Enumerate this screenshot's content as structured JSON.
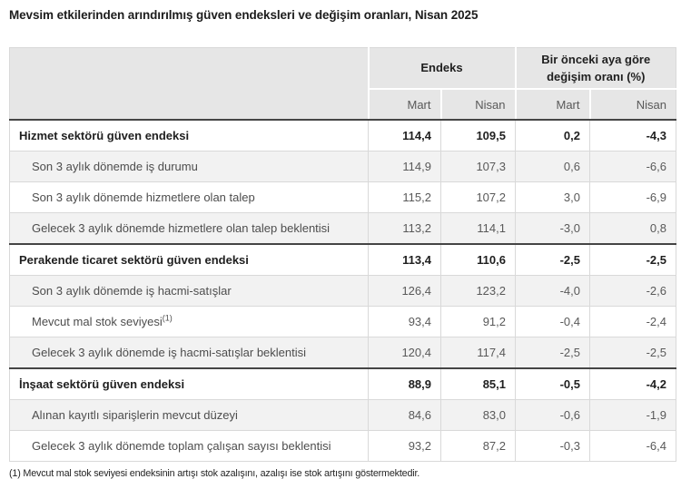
{
  "page": {
    "title": "Mevsim etkilerinden arındırılmış güven endeksleri ve değişim oranları, Nisan 2025",
    "footnote": "(1) Mevcut mal stok seviyesi endeksinin artışı stok azalışını, azalışı ise stok artışını göstermektedir."
  },
  "colors": {
    "header_bg": "#e6e6e6",
    "stripe_bg": "#f2f2f2",
    "light_border": "#d9d9d9",
    "dark_border": "#454545",
    "bold_text": "#1f1f1f",
    "normal_text": "#595959"
  },
  "table": {
    "group_headers": [
      {
        "label": "Endeks"
      },
      {
        "label": "Bir önceki aya göre değişim oranı (%)"
      }
    ],
    "sub_headers": [
      "Mart",
      "Nisan",
      "Mart",
      "Nisan"
    ],
    "rows": [
      {
        "label": "Hizmet sektörü güven endeksi",
        "bold": true,
        "values": [
          "114,4",
          "109,5",
          "0,2",
          "-4,3"
        ]
      },
      {
        "label": "Son 3 aylık dönemde iş durumu",
        "bold": false,
        "values": [
          "114,9",
          "107,3",
          "0,6",
          "-6,6"
        ]
      },
      {
        "label": "Son 3 aylık dönemde hizmetlere olan talep",
        "bold": false,
        "values": [
          "115,2",
          "107,2",
          "3,0",
          "-6,9"
        ]
      },
      {
        "label": "Gelecek 3 aylık dönemde hizmetlere olan talep beklentisi",
        "bold": false,
        "values": [
          "113,2",
          "114,1",
          "-3,0",
          "0,8"
        ]
      },
      {
        "label": "Perakende ticaret sektörü güven endeksi",
        "bold": true,
        "values": [
          "113,4",
          "110,6",
          "-2,5",
          "-2,5"
        ]
      },
      {
        "label": "Son 3 aylık dönemde iş hacmi-satışlar",
        "bold": false,
        "values": [
          "126,4",
          "123,2",
          "-4,0",
          "-2,6"
        ]
      },
      {
        "label": "Mevcut mal stok seviyesi",
        "label_sup": "(1)",
        "bold": false,
        "values": [
          "93,4",
          "91,2",
          "-0,4",
          "-2,4"
        ]
      },
      {
        "label": "Gelecek 3 aylık dönemde iş hacmi-satışlar beklentisi",
        "bold": false,
        "values": [
          "120,4",
          "117,4",
          "-2,5",
          "-2,5"
        ]
      },
      {
        "label": "İnşaat sektörü güven endeksi",
        "bold": true,
        "values": [
          "88,9",
          "85,1",
          "-0,5",
          "-4,2"
        ]
      },
      {
        "label": "Alınan kayıtlı siparişlerin mevcut düzeyi",
        "bold": false,
        "values": [
          "84,6",
          "83,0",
          "-0,6",
          "-1,9"
        ]
      },
      {
        "label": "Gelecek 3 aylık dönemde toplam çalışan sayısı beklentisi",
        "bold": false,
        "values": [
          "93,2",
          "87,2",
          "-0,3",
          "-6,4"
        ]
      }
    ]
  },
  "chart_data": {
    "type": "table",
    "title": "Mevsim etkilerinden arındırılmış güven endeksleri ve değişim oranları, Nisan 2025",
    "columns": [
      "Endeks Mart",
      "Endeks Nisan",
      "Değişim Mart (%)",
      "Değişim Nisan (%)"
    ],
    "categories": [
      "Hizmet sektörü güven endeksi",
      "Son 3 aylık dönemde iş durumu",
      "Son 3 aylık dönemde hizmetlere olan talep",
      "Gelecek 3 aylık dönemde hizmetlere olan talep beklentisi",
      "Perakende ticaret sektörü güven endeksi",
      "Son 3 aylık dönemde iş hacmi-satışlar",
      "Mevcut mal stok seviyesi (1)",
      "Gelecek 3 aylık dönemde iş hacmi-satışlar beklentisi",
      "İnşaat sektörü güven endeksi",
      "Alınan kayıtlı siparişlerin mevcut düzeyi",
      "Gelecek 3 aylık dönemde toplam çalışan sayısı beklentisi"
    ],
    "values": [
      [
        114.4,
        109.5,
        0.2,
        -4.3
      ],
      [
        114.9,
        107.3,
        0.6,
        -6.6
      ],
      [
        115.2,
        107.2,
        3.0,
        -6.9
      ],
      [
        113.2,
        114.1,
        -3.0,
        0.8
      ],
      [
        113.4,
        110.6,
        -2.5,
        -2.5
      ],
      [
        126.4,
        123.2,
        -4.0,
        -2.6
      ],
      [
        93.4,
        91.2,
        -0.4,
        -2.4
      ],
      [
        120.4,
        117.4,
        -2.5,
        -2.5
      ],
      [
        88.9,
        85.1,
        -0.5,
        -4.2
      ],
      [
        84.6,
        83.0,
        -0.6,
        -1.9
      ],
      [
        93.2,
        87.2,
        -0.3,
        -6.4
      ]
    ]
  }
}
